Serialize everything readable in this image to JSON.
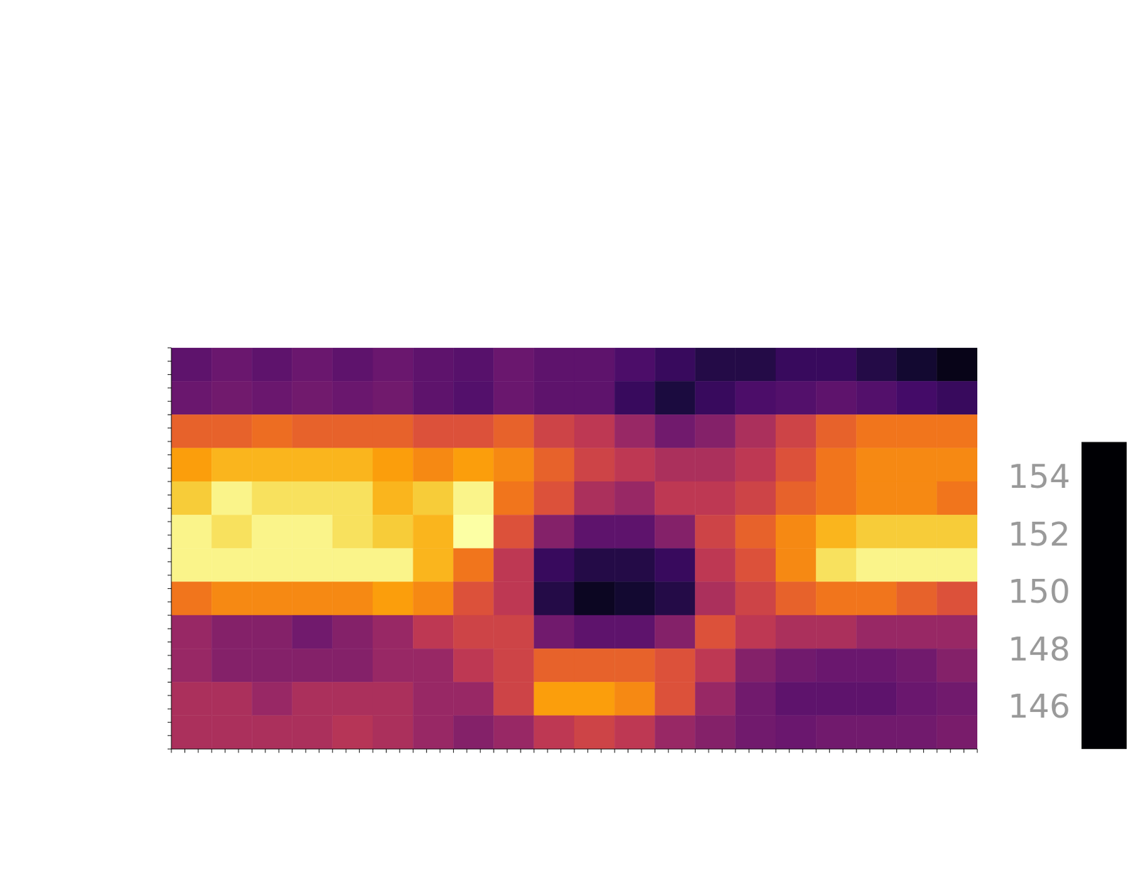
{
  "chart_data": {
    "type": "heatmap",
    "xlim": [
      0,
      60
    ],
    "ylim": [
      0,
      30
    ],
    "xticks": [
      0,
      1,
      2,
      3,
      4,
      5,
      6,
      7,
      8,
      9,
      10,
      11,
      12,
      13,
      14,
      15,
      16,
      17,
      18,
      19,
      20,
      21,
      22,
      23,
      24,
      25,
      26,
      27,
      28,
      29,
      30,
      31,
      32,
      33,
      34,
      35,
      36,
      37,
      38,
      39,
      40,
      41,
      42,
      43,
      44,
      45,
      46,
      47,
      48,
      49,
      50,
      51,
      52,
      53,
      54,
      55,
      56,
      57,
      58,
      59,
      60
    ],
    "yticks": [
      0,
      1,
      2,
      3,
      4,
      5,
      6,
      7,
      8,
      9,
      10,
      11,
      12,
      13,
      14,
      15,
      16,
      17,
      18,
      19,
      20,
      21,
      22,
      23,
      24,
      25,
      26,
      27,
      28,
      29,
      30
    ],
    "tick_labels": false,
    "cells": [
      [
        147.5,
        147.8,
        147.5,
        147.8,
        147.5,
        147.8,
        147.5,
        147.3,
        147.8,
        147.5,
        147.5,
        147,
        146.5,
        146,
        146,
        146.5,
        146.5,
        146,
        145.5,
        145
      ],
      [
        147.8,
        148,
        147.8,
        148,
        147.8,
        148,
        147.5,
        147.2,
        147.8,
        147.5,
        147.5,
        146.5,
        145.8,
        146.5,
        147,
        147.2,
        147.5,
        147.2,
        146.8,
        146.5
      ],
      [
        151.5,
        151.5,
        151.8,
        151.5,
        151.5,
        151.5,
        151,
        151,
        151.5,
        150.5,
        150,
        149,
        148,
        148.5,
        149.5,
        150.5,
        151.5,
        152,
        152,
        152
      ],
      [
        153,
        153.5,
        153.5,
        153.5,
        153.5,
        153,
        152.5,
        153,
        152.5,
        151.5,
        150.5,
        150,
        149.5,
        149.5,
        150,
        151,
        152,
        152.5,
        152.5,
        152.5
      ],
      [
        154,
        155,
        154.5,
        154.5,
        154.5,
        153.5,
        154,
        155,
        152,
        151,
        149.5,
        149,
        150,
        150,
        150.5,
        151.5,
        152,
        152.5,
        152.5,
        152
      ],
      [
        155,
        154.5,
        155,
        155,
        154.5,
        154,
        153.5,
        155.5,
        151,
        148.5,
        147.5,
        147.5,
        148.5,
        150.5,
        151.5,
        152.5,
        153.5,
        154,
        154,
        154
      ],
      [
        155,
        155,
        155,
        155,
        155,
        155,
        153.5,
        152,
        150,
        146.5,
        146,
        146,
        146.5,
        150,
        151,
        152.5,
        154.5,
        155,
        155,
        155
      ],
      [
        152,
        152.5,
        152.5,
        152.5,
        152.5,
        153,
        152.5,
        151,
        150,
        146,
        145.2,
        145.5,
        146,
        149.5,
        150.5,
        151.5,
        152,
        152,
        151.5,
        151
      ],
      [
        149,
        148.5,
        148.5,
        148,
        148.5,
        149,
        150,
        150.5,
        150.5,
        148,
        147.5,
        147.5,
        148.5,
        151,
        150,
        149.5,
        149.5,
        149,
        149,
        149
      ],
      [
        149,
        148.5,
        148.5,
        148.5,
        148.5,
        149,
        149,
        150,
        150.5,
        151.5,
        151.5,
        151.5,
        151,
        150,
        148.5,
        148,
        147.8,
        147.8,
        148,
        148.5
      ],
      [
        149.5,
        149.5,
        149,
        149.5,
        149.5,
        149.5,
        149,
        149,
        150.5,
        153,
        153,
        152.5,
        151,
        149,
        148,
        147.5,
        147.5,
        147.5,
        147.8,
        148
      ],
      [
        149.5,
        149.5,
        149.5,
        149.5,
        149.8,
        149.5,
        149,
        148.5,
        149,
        150,
        150.5,
        150,
        149,
        148.5,
        148,
        147.8,
        148,
        148,
        148,
        148.2
      ]
    ],
    "colorbar": {
      "range": [
        144.6,
        155.3
      ],
      "ticks": [
        146,
        148,
        150,
        152,
        154
      ]
    }
  }
}
